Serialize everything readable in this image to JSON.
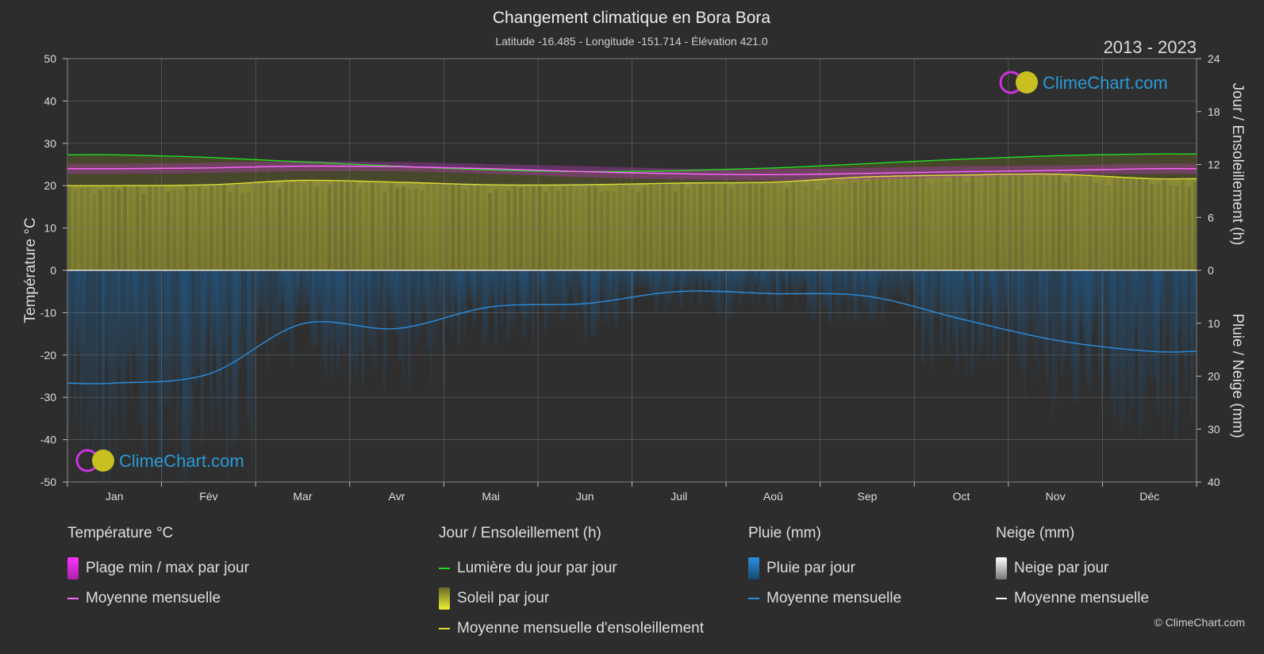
{
  "header": {
    "title": "Changement climatique en Bora Bora",
    "subtitle": "Latitude -16.485 - Longitude -151.714 - Élévation 421.0",
    "year_range": "2013 - 2023"
  },
  "brand": {
    "logo_text": "ClimeChart.com",
    "copyright": "© ClimeChart.com"
  },
  "colors": {
    "background": "#2d2d2d",
    "temp_range": "#cc33cc",
    "temp_mean": "#ff66ff",
    "daylight": "#22dd22",
    "sunshine_fill": "#8a8a34",
    "sunshine_mean": "#dddd33",
    "rain_fill": "#1b5f95",
    "rain_mean": "#2a8ee0",
    "snow_mean": "#ffffff",
    "logo_text": "#2a9ad8"
  },
  "chart_data": {
    "type": "area",
    "x": [
      "Jan",
      "Fév",
      "Mar",
      "Avr",
      "Mai",
      "Jun",
      "Juil",
      "Aoû",
      "Sep",
      "Oct",
      "Nov",
      "Déc"
    ],
    "left_axis": {
      "label": "Température °C",
      "range": [
        -50,
        50
      ],
      "ticks": [
        50,
        40,
        30,
        20,
        10,
        0,
        -10,
        -20,
        -30,
        -40,
        -50
      ]
    },
    "right_axis_top": {
      "label": "Jour / Ensoleillement (h)",
      "range": [
        0,
        24
      ],
      "ticks": [
        24,
        18,
        12,
        6,
        0
      ]
    },
    "right_axis_bottom": {
      "label": "Pluie / Neige (mm)",
      "range": [
        0,
        40
      ],
      "ticks": [
        0,
        10,
        20,
        30,
        40
      ]
    },
    "grid": true,
    "series": [
      {
        "name": "Lumière du jour par jour",
        "axis": "hours",
        "values": [
          13.1,
          12.8,
          12.3,
          11.8,
          11.4,
          11.2,
          11.3,
          11.6,
          12.1,
          12.6,
          13.0,
          13.2
        ]
      },
      {
        "name": "Moyenne mensuelle d'ensoleillement",
        "axis": "hours",
        "values": [
          9.6,
          9.7,
          10.2,
          10.0,
          9.7,
          9.7,
          9.9,
          10.0,
          10.6,
          10.8,
          10.9,
          10.4
        ]
      },
      {
        "name": "Moyenne mensuelle",
        "group": "Température °C",
        "axis": "temp",
        "values": [
          24.0,
          24.2,
          24.6,
          24.5,
          24.0,
          23.3,
          22.8,
          22.6,
          22.9,
          23.3,
          23.6,
          24.0
        ]
      },
      {
        "name": "Plage min / max par jour",
        "axis": "temp",
        "min": [
          22.8,
          23.0,
          23.4,
          23.4,
          22.8,
          22.0,
          21.5,
          21.2,
          21.5,
          22.0,
          22.5,
          22.8
        ],
        "max": [
          25.2,
          25.4,
          25.8,
          25.6,
          25.1,
          24.6,
          24.0,
          23.9,
          24.2,
          24.6,
          24.8,
          25.2
        ]
      },
      {
        "name": "Moyenne mensuelle",
        "group": "Pluie (mm)",
        "axis": "rain",
        "values": [
          21.3,
          19.6,
          10.1,
          11.0,
          6.9,
          6.3,
          4.0,
          4.4,
          4.9,
          9.2,
          13.2,
          15.3
        ]
      }
    ]
  },
  "legend": {
    "groups": [
      {
        "title": "Température °C",
        "items": [
          {
            "label": "Plage min / max par jour",
            "kind": "rect",
            "color": "#cc33cc"
          },
          {
            "label": "Moyenne mensuelle",
            "kind": "line",
            "color": "#ff66ff"
          }
        ]
      },
      {
        "title": "Jour / Ensoleillement (h)",
        "items": [
          {
            "label": "Lumière du jour par jour",
            "kind": "line",
            "color": "#22dd22"
          },
          {
            "label": "Soleil par jour",
            "kind": "rect",
            "color": "#c8c840"
          },
          {
            "label": "Moyenne mensuelle d'ensoleillement",
            "kind": "line",
            "color": "#dddd33"
          }
        ]
      },
      {
        "title": "Pluie (mm)",
        "items": [
          {
            "label": "Pluie par jour",
            "kind": "rect",
            "color": "#2a7fd0"
          },
          {
            "label": "Moyenne mensuelle",
            "kind": "line",
            "color": "#2a8ee0"
          }
        ]
      },
      {
        "title": "Neige (mm)",
        "items": [
          {
            "label": "Neige par jour",
            "kind": "rect",
            "color": "#dddddd"
          },
          {
            "label": "Moyenne mensuelle",
            "kind": "line",
            "color": "#ffffff"
          }
        ]
      }
    ]
  }
}
